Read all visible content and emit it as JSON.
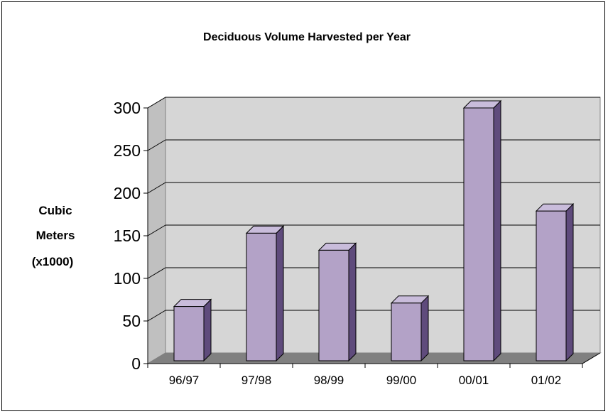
{
  "chart_data": {
    "type": "bar",
    "title": "Deciduous Volume Harvested per Year",
    "xlabel": "",
    "ylabel": [
      "Cubic",
      "Meters",
      "(x1000)"
    ],
    "categories": [
      "96/97",
      "97/98",
      "98/99",
      "99/00",
      "00/01",
      "01/02"
    ],
    "series": [
      {
        "values": [
          67,
          153,
          133,
          71,
          300,
          179
        ]
      }
    ],
    "ylim": [
      0,
      300
    ],
    "yticks": [
      "0",
      "50",
      "100",
      "150",
      "200",
      "250",
      "300"
    ],
    "grid": true,
    "legend": "none",
    "colors": {
      "bar_front": "#B3A2C7",
      "bar_side": "#5F4B7C",
      "bar_top": "#C9BCDB",
      "wall": "#D6D6D6",
      "floor": "#808080",
      "gridline": "#000000"
    }
  }
}
